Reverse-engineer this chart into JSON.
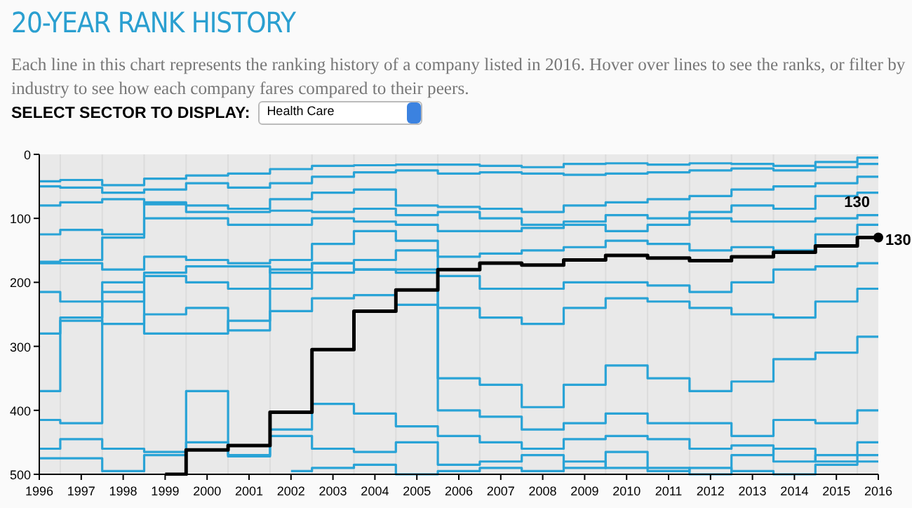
{
  "chart_data": {
    "type": "step",
    "title": "20-YEAR RANK HISTORY",
    "subtitle": "Each line in this chart represents the ranking history of a company listed in 2016. Hover over lines to see the ranks, or filter by industry to see how each company fares compared to their peers.",
    "annotations": [
      "SELECT SECTOR TO DISPLAY:",
      "Health Care",
      {
        "text": "130",
        "x": 2016,
        "y": 130
      }
    ],
    "x": [
      1996,
      1997,
      1998,
      1999,
      2000,
      2001,
      2002,
      2003,
      2004,
      2005,
      2006,
      2007,
      2008,
      2009,
      2010,
      2011,
      2012,
      2013,
      2014,
      2015,
      2016
    ],
    "xlim": [
      1996,
      2016
    ],
    "xticks": [
      1996,
      1997,
      1998,
      1999,
      2000,
      2001,
      2002,
      2003,
      2004,
      2005,
      2006,
      2007,
      2008,
      2009,
      2010,
      2011,
      2012,
      2013,
      2014,
      2015,
      2016
    ],
    "ylim": [
      500,
      0
    ],
    "yticks": [
      0,
      100,
      200,
      300,
      400,
      500
    ],
    "grid": false,
    "series": [
      {
        "color": "#29a3d6",
        "values": [
          42,
          40,
          48,
          38,
          33,
          30,
          23,
          18,
          17,
          16,
          16,
          18,
          20,
          15,
          14,
          16,
          14,
          15,
          18,
          12,
          5
        ]
      },
      {
        "color": "#29a3d6",
        "values": [
          50,
          52,
          60,
          55,
          45,
          52,
          45,
          35,
          28,
          25,
          30,
          28,
          30,
          32,
          30,
          28,
          25,
          22,
          25,
          20,
          15
        ]
      },
      {
        "color": "#29a3d6",
        "values": [
          80,
          75,
          70,
          78,
          80,
          85,
          70,
          60,
          55,
          80,
          82,
          85,
          90,
          80,
          75,
          70,
          65,
          55,
          50,
          45,
          35
        ]
      },
      {
        "color": "#29a3d6",
        "values": [
          125,
          118,
          125,
          75,
          90,
          90,
          88,
          90,
          85,
          95,
          90,
          100,
          110,
          105,
          95,
          100,
          90,
          80,
          85,
          65,
          60
        ]
      },
      {
        "color": "#29a3d6",
        "values": [
          168,
          165,
          130,
          100,
          100,
          110,
          110,
          100,
          105,
          110,
          120,
          120,
          115,
          110,
          120,
          110,
          100,
          105,
          105,
          100,
          95
        ]
      },
      {
        "color": "#29a3d6",
        "values": [
          170,
          170,
          180,
          160,
          165,
          170,
          165,
          140,
          120,
          135,
          160,
          155,
          150,
          145,
          135,
          140,
          150,
          145,
          150,
          125,
          110
        ]
      },
      {
        "color": "#29a3d6",
        "values": [
          215,
          230,
          200,
          185,
          175,
          175,
          185,
          170,
          165,
          150,
          190,
          210,
          210,
          200,
          200,
          205,
          215,
          200,
          180,
          175,
          170
        ]
      },
      {
        "color": "#29a3d6",
        "values": [
          280,
          255,
          215,
          280,
          280,
          260,
          245,
          225,
          220,
          235,
          240,
          255,
          265,
          240,
          225,
          230,
          240,
          250,
          255,
          230,
          210
        ]
      },
      {
        "color": "#29a3d6",
        "values": [
          370,
          260,
          265,
          250,
          240,
          275,
          210,
          185,
          180,
          185,
          350,
          360,
          395,
          360,
          330,
          350,
          370,
          355,
          320,
          310,
          285
        ]
      },
      {
        "color": "#29a3d6",
        "values": [
          415,
          420,
          230,
          190,
          200,
          210,
          180,
          170,
          180,
          180,
          400,
          410,
          430,
          420,
          405,
          420,
          420,
          440,
          415,
          420,
          400
        ]
      },
      {
        "color": "#29a3d6",
        "values": [
          460,
          445,
          460,
          465,
          450,
          470,
          430,
          390,
          405,
          425,
          440,
          450,
          460,
          445,
          440,
          445,
          460,
          455,
          480,
          470,
          450
        ]
      },
      {
        "color": "#29a3d6",
        "values": [
          475,
          475,
          495,
          470,
          370,
          472,
          440,
          460,
          465,
          450,
          485,
          480,
          470,
          490,
          465,
          490,
          500,
          470,
          460,
          480,
          470
        ]
      },
      {
        "color": "#29a3d6",
        "values": [
          null,
          null,
          null,
          null,
          null,
          null,
          495,
          490,
          485,
          500,
          495,
          490,
          495,
          480,
          490,
          495,
          490,
          495,
          500,
          485,
          480
        ]
      },
      {
        "color": "#000000",
        "values": [
          null,
          null,
          null,
          500,
          462,
          455,
          403,
          305,
          245,
          212,
          180,
          170,
          173,
          165,
          158,
          162,
          166,
          160,
          153,
          143,
          130
        ],
        "value_labels": [
          null,
          null,
          null,
          null,
          null,
          null,
          null,
          null,
          null,
          null,
          null,
          null,
          null,
          null,
          null,
          null,
          null,
          null,
          null,
          null,
          "130"
        ]
      }
    ]
  }
}
